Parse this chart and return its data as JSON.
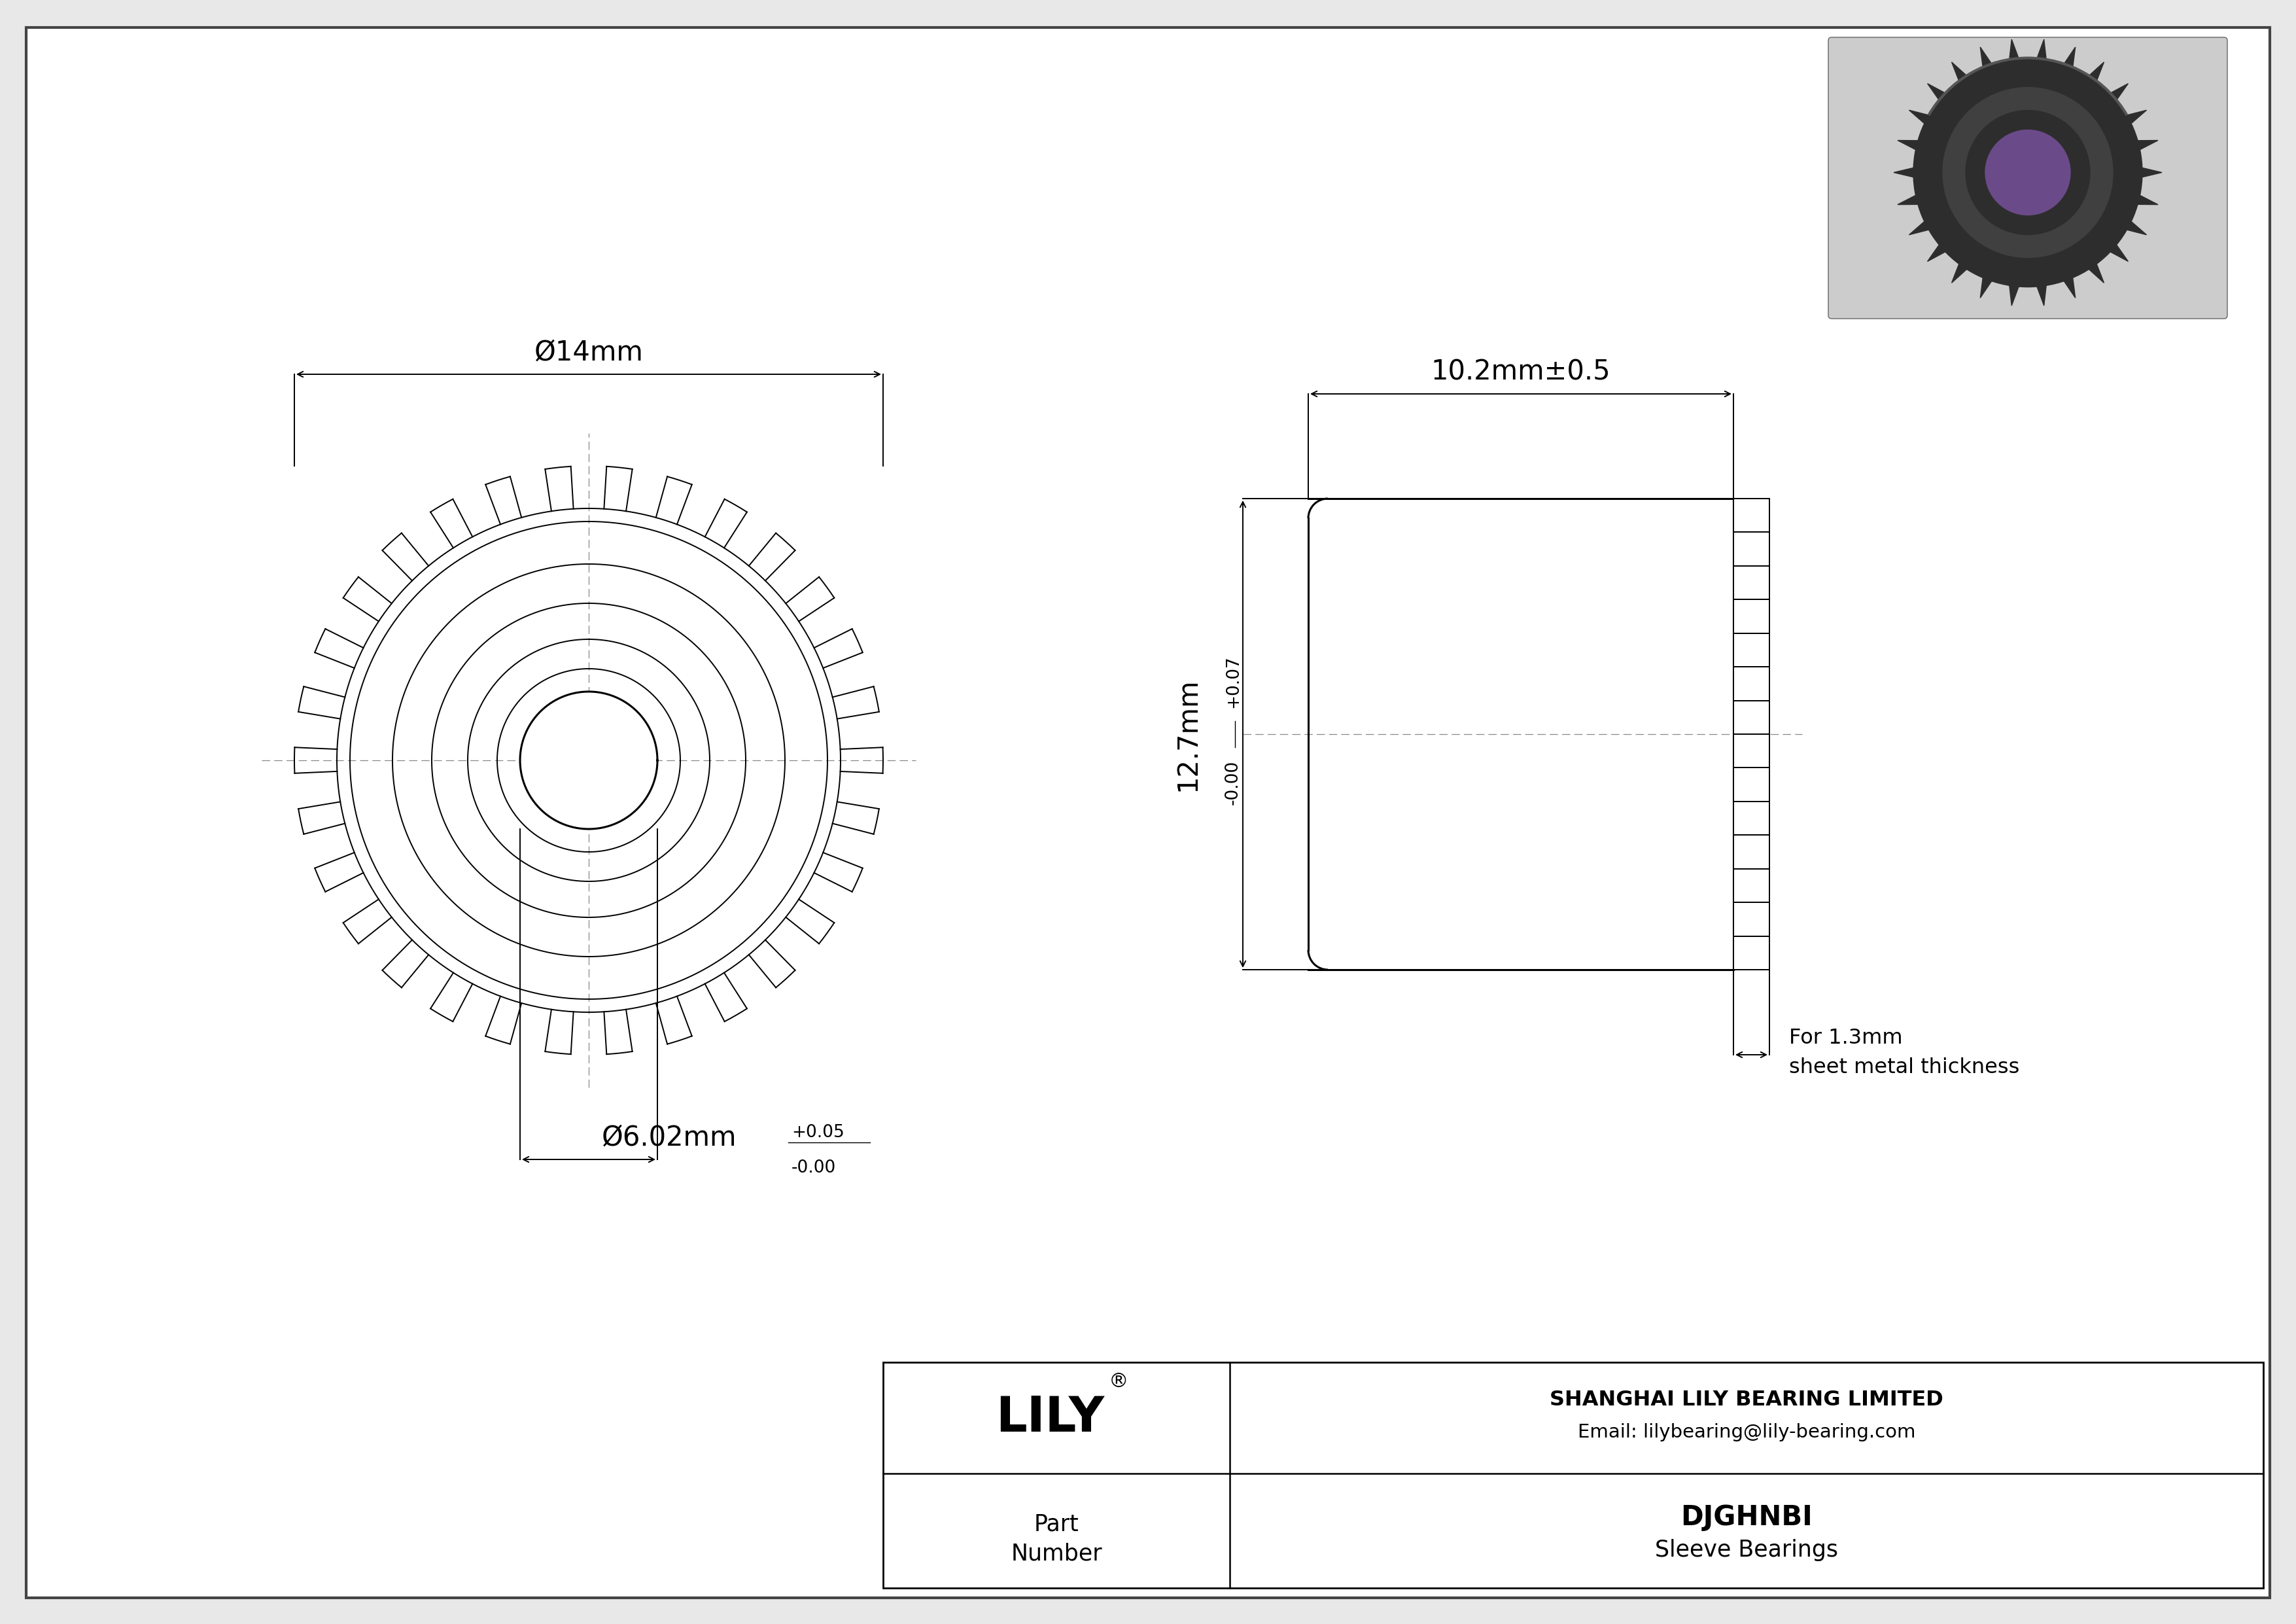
{
  "bg_color": "#e8e8e8",
  "drawing_bg": "#ffffff",
  "line_color": "#000000",
  "title": "DJGHNBI",
  "subtitle": "Sleeve Bearings",
  "company": "SHANGHAI LILY BEARING LIMITED",
  "email": "Email: lilybearing@lily-bearing.com",
  "part_label": "Part\nNumber",
  "dim_outer": "Ø14mm",
  "dim_inner": "Ø6.02mm",
  "dim_length": "10.2mm±0.5",
  "dim_height": "12.7mm",
  "note_line1": "For 1.3mm",
  "note_line2": "sheet metal thickness"
}
